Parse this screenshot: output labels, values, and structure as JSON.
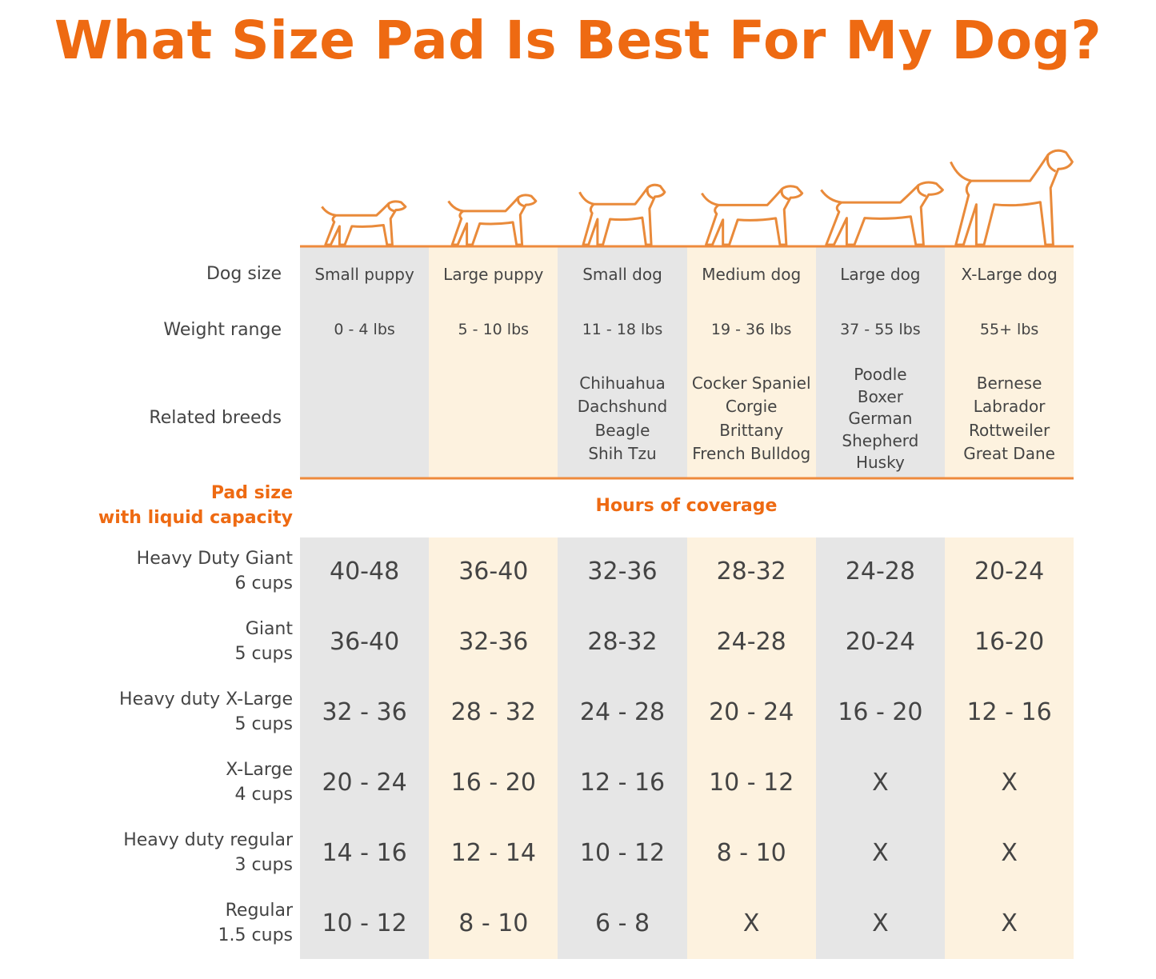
{
  "title": "What Size Pad Is Best For My Dog?",
  "row_labels": {
    "dog_size": "Dog size",
    "weight_range": "Weight range",
    "related_breeds": "Related breeds"
  },
  "columns": [
    {
      "size": "Small puppy",
      "weight": "0 - 4 lbs",
      "breeds": []
    },
    {
      "size": "Large puppy",
      "weight": "5 - 10 lbs",
      "breeds": []
    },
    {
      "size": "Small dog",
      "weight": "11 - 18 lbs",
      "breeds": [
        "Chihuahua",
        "Dachshund",
        "Beagle",
        "Shih Tzu"
      ]
    },
    {
      "size": "Medium dog",
      "weight": "19 - 36 lbs",
      "breeds": [
        "Cocker Spaniel",
        "Corgie",
        "Brittany",
        "French Bulldog"
      ]
    },
    {
      "size": "Large dog",
      "weight": "37 - 55 lbs",
      "breeds": [
        "Poodle",
        "Boxer",
        "German",
        "Shepherd",
        "Husky"
      ]
    },
    {
      "size": "X-Large dog",
      "weight": "55+ lbs",
      "breeds": [
        "Bernese",
        "Labrador",
        "Rottweiler",
        "Great Dane"
      ]
    }
  ],
  "pad_header": [
    "Pad size",
    "with liquid capacity"
  ],
  "coverage_header": "Hours of coverage",
  "pads": [
    {
      "name": "Heavy Duty Giant",
      "capacity": "6 cups",
      "hours": [
        "40-48",
        "36-40",
        "32-36",
        "28-32",
        "24-28",
        "20-24"
      ]
    },
    {
      "name": "Giant",
      "capacity": "5 cups",
      "hours": [
        "36-40",
        "32-36",
        "28-32",
        "24-28",
        "20-24",
        "16-20"
      ]
    },
    {
      "name": "Heavy duty X-Large",
      "capacity": "5 cups",
      "hours": [
        "32 - 36",
        "28 - 32",
        "24 - 28",
        "20 - 24",
        "16 - 20",
        "12 - 16"
      ]
    },
    {
      "name": "X-Large",
      "capacity": "4 cups",
      "hours": [
        "20 - 24",
        "16 - 20",
        "12 - 16",
        "10 - 12",
        "X",
        "X"
      ]
    },
    {
      "name": "Heavy duty regular",
      "capacity": "3 cups",
      "hours": [
        "14 - 16",
        "12 - 14",
        "10 - 12",
        "8 - 10",
        "X",
        "X"
      ]
    },
    {
      "name": "Regular",
      "capacity": "1.5 cups",
      "hours": [
        "10 - 12",
        "8 - 10",
        "6 - 8",
        "X",
        "X",
        "X"
      ]
    }
  ]
}
